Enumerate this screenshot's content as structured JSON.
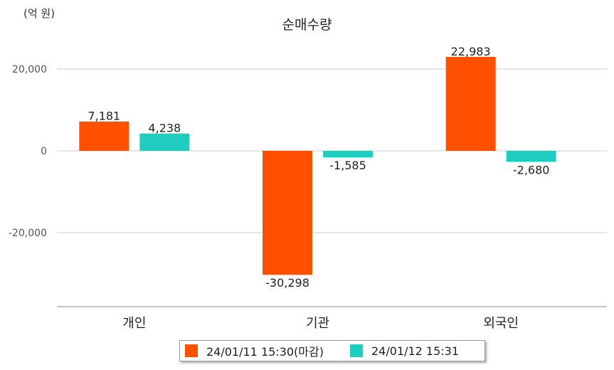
{
  "chart_data": {
    "type": "bar",
    "title": "순매수량",
    "unit_label": "(억 원)",
    "categories": [
      "개인",
      "기관",
      "외국인"
    ],
    "series": [
      {
        "name": "24/01/11 15:30(마감)",
        "color": "#ff5000",
        "values": [
          7181,
          -30298,
          22983
        ],
        "labels": [
          "7,181",
          "-30,298",
          "22,983"
        ]
      },
      {
        "name": "24/01/12 15:31",
        "color": "#1ecdbe",
        "values": [
          4238,
          -1585,
          -2680
        ],
        "labels": [
          "4,238",
          "-1,585",
          "-2,680"
        ]
      }
    ],
    "yticks": [
      20000,
      0,
      -20000
    ],
    "ytick_labels": [
      "20,000",
      "0",
      "-20,000"
    ],
    "ylim": [
      -37000,
      28000
    ],
    "grid": true,
    "legend": "bottom"
  }
}
